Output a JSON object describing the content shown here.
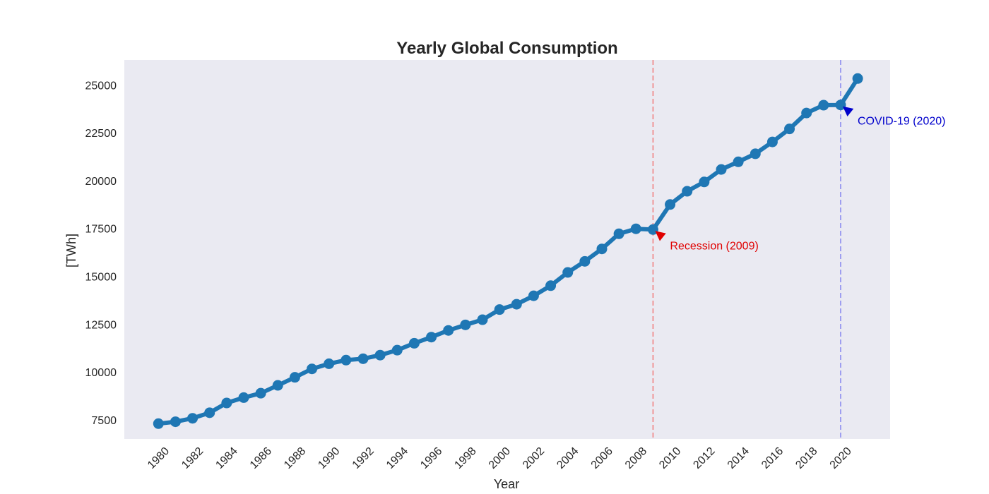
{
  "chart_data": {
    "type": "line",
    "title": "Yearly Global Consumption",
    "xlabel": "Year",
    "ylabel": "[TWh]",
    "xlim": [
      1978,
      2022.9
    ],
    "ylim": [
      6500,
      26300
    ],
    "grid": false,
    "background": "#eaeaf2",
    "series": [
      {
        "color": "#1f77b4",
        "x": [
          1980,
          1981,
          1982,
          1983,
          1984,
          1985,
          1986,
          1987,
          1988,
          1989,
          1990,
          1991,
          1992,
          1993,
          1994,
          1995,
          1996,
          1997,
          1998,
          1999,
          2000,
          2001,
          2002,
          2003,
          2004,
          2005,
          2006,
          2007,
          2008,
          2009,
          2010,
          2011,
          2012,
          2013,
          2014,
          2015,
          2016,
          2017,
          2018,
          2019,
          2020,
          2021
        ],
        "values": [
          7300,
          7400,
          7580,
          7870,
          8380,
          8660,
          8890,
          9300,
          9720,
          10160,
          10430,
          10620,
          10690,
          10880,
          11140,
          11500,
          11820,
          12170,
          12460,
          12730,
          13260,
          13540,
          13980,
          14510,
          15200,
          15780,
          16430,
          17220,
          17480,
          17440,
          18750,
          19440,
          19930,
          20580,
          20980,
          21400,
          22020,
          22700,
          23530,
          23940,
          23950,
          25330
        ]
      }
    ],
    "xticks": [
      1980,
      1982,
      1984,
      1986,
      1988,
      1990,
      1992,
      1994,
      1996,
      1998,
      2000,
      2002,
      2004,
      2006,
      2008,
      2010,
      2012,
      2014,
      2016,
      2018,
      2020
    ],
    "yticks": [
      7500,
      10000,
      12500,
      15000,
      17500,
      20000,
      22500,
      25000
    ],
    "vlines": [
      {
        "x": 2009,
        "color": "#f08080"
      },
      {
        "x": 2020,
        "color": "#8c8cf0"
      }
    ],
    "annotations": [
      {
        "text": "Recession (2009)",
        "x": 2009,
        "y": 17440,
        "color": "#e00000"
      },
      {
        "text": "COVID-19 (2020)",
        "x": 2020,
        "y": 23950,
        "color": "#0000cc"
      }
    ]
  }
}
